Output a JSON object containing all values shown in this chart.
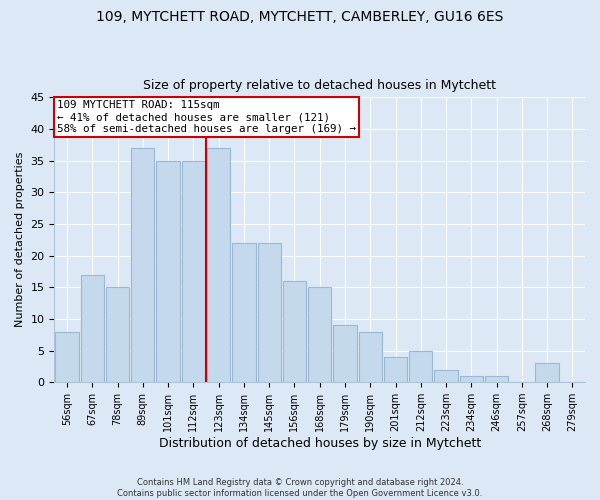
{
  "title": "109, MYTCHETT ROAD, MYTCHETT, CAMBERLEY, GU16 6ES",
  "subtitle": "Size of property relative to detached houses in Mytchett",
  "xlabel": "Distribution of detached houses by size in Mytchett",
  "ylabel": "Number of detached properties",
  "bar_labels": [
    "56sqm",
    "67sqm",
    "78sqm",
    "89sqm",
    "101sqm",
    "112sqm",
    "123sqm",
    "134sqm",
    "145sqm",
    "156sqm",
    "168sqm",
    "179sqm",
    "190sqm",
    "201sqm",
    "212sqm",
    "223sqm",
    "234sqm",
    "246sqm",
    "257sqm",
    "268sqm",
    "279sqm"
  ],
  "bar_values": [
    8,
    17,
    15,
    37,
    35,
    35,
    37,
    22,
    22,
    16,
    15,
    9,
    8,
    4,
    5,
    2,
    1,
    1,
    0,
    3,
    0
  ],
  "bar_color": "#c5d9ec",
  "bar_edge_color": "#9ab8d4",
  "vline_x": 5.5,
  "vline_color": "#cc0000",
  "annotation_title": "109 MYTCHETT ROAD: 115sqm",
  "annotation_line1": "← 41% of detached houses are smaller (121)",
  "annotation_line2": "58% of semi-detached houses are larger (169) →",
  "annotation_box_color": "#ffffff",
  "annotation_box_edge": "#cc0000",
  "ylim": [
    0,
    45
  ],
  "yticks": [
    0,
    5,
    10,
    15,
    20,
    25,
    30,
    35,
    40,
    45
  ],
  "bg_color": "#dce8f5",
  "grid_color": "#ffffff",
  "footer1": "Contains HM Land Registry data © Crown copyright and database right 2024.",
  "footer2": "Contains public sector information licensed under the Open Government Licence v3.0."
}
